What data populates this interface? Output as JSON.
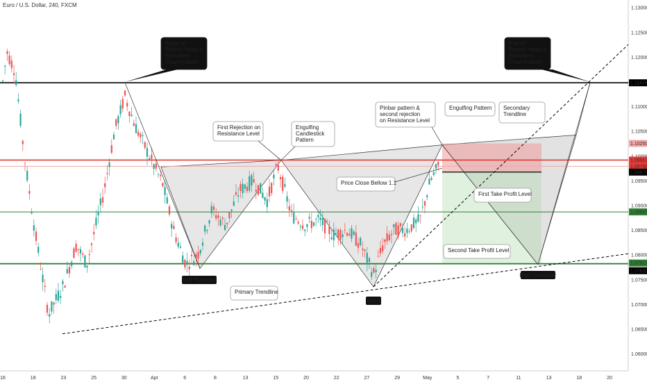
{
  "chart_title": "Euro / U.S. Dollar, 240, FXCM",
  "chart_data": {
    "type": "candlestick",
    "title": "Euro / U.S. Dollar, 240, FXCM",
    "ylim": [
      1.0565,
      1.1315
    ],
    "y_ticks": [
      "1.13000",
      "1.12500",
      "1.12000",
      "1.11500",
      "1.11000",
      "1.10500",
      "1.10000",
      "1.09500",
      "1.09000",
      "1.08500",
      "1.08000",
      "1.07500",
      "1.07000",
      "1.06500",
      "1.06000"
    ],
    "x_ticks": [
      "16",
      "18",
      "23",
      "25",
      "30",
      "Apr",
      "6",
      "8",
      "13",
      "15",
      "20",
      "22",
      "27",
      "29",
      "May",
      "5",
      "7",
      "11",
      "13",
      "18",
      "20"
    ],
    "price_labels": [
      {
        "text": "1.11476",
        "value": 1.11476,
        "color": "#000000"
      },
      {
        "text": "1.10250",
        "value": 1.1025,
        "color": "#f4a6a6"
      },
      {
        "text": "1.09913",
        "value": 1.09913,
        "color": "#e53935"
      },
      {
        "text": "1.09788",
        "value": 1.09788,
        "color": "#e53935"
      },
      {
        "text": "1.09670",
        "value": 1.0967,
        "color": "#000000"
      },
      {
        "text": "1.08865",
        "value": 1.08865,
        "color": "#2e7d32"
      },
      {
        "text": "1.07817",
        "value": 1.07817,
        "color": "#2e7d32"
      },
      {
        "text": "1.07830",
        "value": 1.0783,
        "color": "#000000"
      }
    ],
    "levels": {
      "resistance_black": 1.11476,
      "red_line": 1.09913,
      "red_line_2": 1.09788,
      "entry_line": 1.0967,
      "take_profit_1": 1.08865,
      "take_profit_2": 1.07817
    },
    "annotations": {
      "begin": "Begin of\nBottom Head &\nShoulders\nChart Pattern",
      "end": "End of\nBottom Head &\nShoulders\nChart Pattern",
      "first_rejection": "First Rejection on\nResistance Level",
      "engulfing_candle": "Engulfing\nCandlestick\nPattern",
      "pinbar": "Pinbar pattern &\nsecond rejection\non Resistance Level",
      "engulfing": "Engulfing Pattern",
      "secondary": "Secondary\nTrendline",
      "price_close": "Price Close Bellow 1.1",
      "tp1": "First Take Profit Level",
      "tp2": "Second Take Profit Level",
      "primary": "Primary Trendline",
      "left_shoulder": "Left Shoulder",
      "head": "Head",
      "right_shoulder": "Right Shoulder"
    },
    "colors": {
      "up": "#26a69a",
      "down": "#ef5350",
      "resistance": "#000000",
      "red": "#e53935",
      "green": "#2e7d32"
    }
  }
}
